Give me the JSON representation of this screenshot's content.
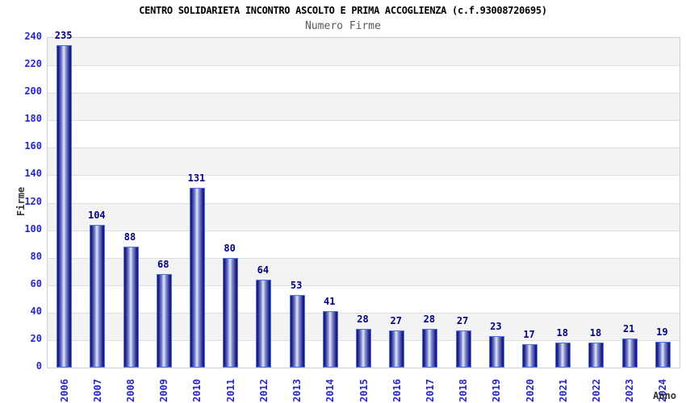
{
  "title": "CENTRO SOLIDARIETA INCONTRO ASCOLTO E PRIMA ACCOGLIENZA (c.f.93008720695)",
  "subtitle": "Numero Firme",
  "chart_data": {
    "type": "bar",
    "title": "CENTRO SOLIDARIETA INCONTRO ASCOLTO E PRIMA ACCOGLIENZA (c.f.93008720695)",
    "subtitle": "Numero Firme",
    "xlabel": "Anno",
    "ylabel": "Firme",
    "categories": [
      "2006",
      "2007",
      "2008",
      "2009",
      "2010",
      "2011",
      "2012",
      "2013",
      "2014",
      "2015",
      "2016",
      "2017",
      "2018",
      "2019",
      "2020",
      "2021",
      "2022",
      "2023",
      "2024"
    ],
    "values": [
      235,
      104,
      88,
      68,
      131,
      80,
      64,
      53,
      41,
      28,
      27,
      28,
      27,
      23,
      17,
      18,
      18,
      21,
      19
    ],
    "ylim": [
      0,
      240
    ],
    "ytick_step": 20,
    "grid": true,
    "legend": false,
    "bar_value_labels": true
  },
  "colors": {
    "title": "#000000",
    "subtitle": "#5a5a5a",
    "tick_label": "#2626cc",
    "value_label": "#000080",
    "axis_title": "#333333",
    "plot_border": "#d0d0d0",
    "gridline": "#dedede",
    "band_gray": "#f3f3f3",
    "band_white": "#ffffff",
    "bar_border": "#4d74e0",
    "bar_dark": "#1a1a82",
    "bar_mid": "#8property692d4",
    "bar_mid_fix": "#8692d4",
    "bar_light": "#e6e9f8"
  }
}
